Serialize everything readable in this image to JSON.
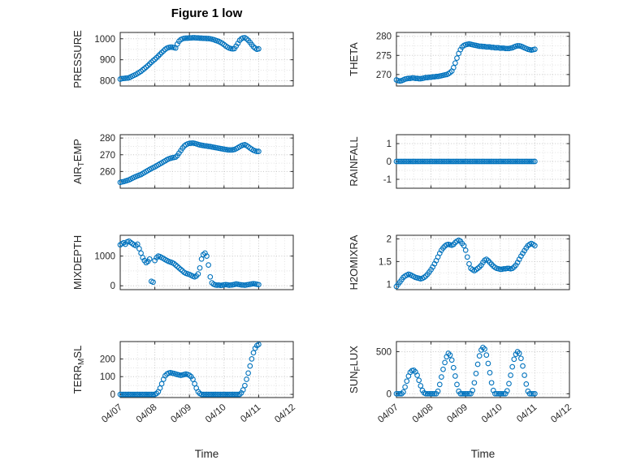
{
  "figure": {
    "title": "Figure 1 low",
    "marker_color": "#0072BD",
    "axis_color": "#262626",
    "grid_color": "#c6c6c6",
    "minor_grid_color": "#e2e2e2"
  },
  "x_axis": {
    "label": "Time",
    "lim": [
      7,
      12
    ],
    "ticks": [
      7,
      8,
      9,
      10,
      11,
      12
    ],
    "tick_labels": [
      "04/07",
      "04/08",
      "04/09",
      "04/10",
      "04/11",
      "04/12"
    ]
  },
  "chart_data": {
    "type": "scatter",
    "marker": "open-circle",
    "shared_x": [
      7,
      7.05,
      7.1,
      7.15,
      7.2,
      7.25,
      7.3,
      7.35,
      7.4,
      7.45,
      7.5,
      7.55,
      7.6,
      7.65,
      7.7,
      7.75,
      7.8,
      7.85,
      7.9,
      7.95,
      8,
      8.05,
      8.1,
      8.15,
      8.2,
      8.25,
      8.3,
      8.35,
      8.4,
      8.45,
      8.5,
      8.55,
      8.6,
      8.65,
      8.7,
      8.75,
      8.8,
      8.85,
      8.9,
      8.95,
      9,
      9.05,
      9.1,
      9.15,
      9.2,
      9.25,
      9.3,
      9.35,
      9.4,
      9.45,
      9.5,
      9.55,
      9.6,
      9.65,
      9.7,
      9.75,
      9.8,
      9.85,
      9.9,
      9.95,
      10,
      10.05,
      10.1,
      10.15,
      10.2,
      10.25,
      10.3,
      10.35,
      10.4,
      10.45,
      10.5,
      10.55,
      10.6,
      10.65,
      10.7,
      10.75,
      10.8,
      10.85,
      10.9,
      10.95,
      11
    ],
    "panels": [
      {
        "ylabel": "PRESSURE",
        "yticks": [
          800,
          900,
          1000
        ],
        "ylim": [
          775,
          1030
        ],
        "y": [
          808,
          810,
          811,
          812,
          813,
          814,
          818,
          822,
          826,
          830,
          835,
          840,
          845,
          852,
          858,
          865,
          872,
          880,
          888,
          896,
          902,
          910,
          918,
          926,
          934,
          942,
          950,
          955,
          958,
          960,
          960,
          958,
          956,
          975,
          988,
          996,
          1000,
          1002,
          1003,
          1003,
          1004,
          1004,
          1005,
          1005,
          1004,
          1004,
          1003,
          1003,
          1002,
          1002,
          1001,
          1001,
          1000,
          998,
          996,
          993,
          990,
          987,
          983,
          978,
          972,
          966,
          960,
          956,
          953,
          952,
          953,
          965,
          978,
          992,
          1000,
          1004,
          1005,
          1000,
          992,
          983,
          972,
          962,
          955,
          950,
          952
        ]
      },
      {
        "ylabel": "THETA",
        "yticks": [
          270,
          275,
          280
        ],
        "ylim": [
          267,
          281
        ],
        "y": [
          268.6,
          268.4,
          268.3,
          268.4,
          268.6,
          268.8,
          268.9,
          269,
          269,
          269.1,
          269.1,
          269,
          269,
          268.9,
          268.9,
          269,
          269.1,
          269.2,
          269.2,
          269.3,
          269.3,
          269.4,
          269.4,
          269.5,
          269.5,
          269.6,
          269.7,
          269.8,
          269.9,
          270,
          270.2,
          270.5,
          270.9,
          271.8,
          273,
          274.3,
          275.5,
          276.5,
          277.2,
          277.6,
          277.8,
          277.9,
          278,
          277.9,
          277.8,
          277.7,
          277.6,
          277.5,
          277.4,
          277.4,
          277.3,
          277.3,
          277.2,
          277.2,
          277.2,
          277.1,
          277.1,
          277,
          277,
          277,
          276.9,
          276.9,
          276.9,
          276.8,
          276.8,
          276.8,
          276.9,
          277,
          277.2,
          277.4,
          277.5,
          277.5,
          277.4,
          277.2,
          277,
          276.8,
          276.6,
          276.5,
          276.4,
          276.5,
          276.6
        ]
      },
      {
        "ylabel": "AIR_TEMP",
        "yticks": [
          260,
          270,
          280
        ],
        "ylim": [
          250,
          282
        ],
        "y": [
          253.5,
          253.8,
          254,
          254.3,
          254.6,
          255,
          255.5,
          256,
          256.5,
          257,
          257.4,
          257.8,
          258.2,
          258.8,
          259.4,
          260,
          260.6,
          261.2,
          261.8,
          262.3,
          262.8,
          263.4,
          264,
          264.6,
          265.2,
          265.8,
          266.4,
          267,
          267.5,
          267.9,
          268.2,
          268.4,
          268.6,
          269.5,
          271,
          272.5,
          274,
          275.2,
          276,
          276.5,
          276.8,
          276.9,
          277,
          276.8,
          276.5,
          276.2,
          275.9,
          275.7,
          275.5,
          275.3,
          275.2,
          275,
          274.9,
          274.7,
          274.5,
          274.3,
          274.1,
          273.9,
          273.7,
          273.5,
          273.3,
          273.2,
          273,
          272.9,
          272.9,
          273,
          273.2,
          273.6,
          274.2,
          274.8,
          275.4,
          275.8,
          276,
          275.5,
          274.8,
          274,
          273.3,
          272.7,
          272.3,
          272,
          272
        ]
      },
      {
        "ylabel": "RAINFALL",
        "yticks": [
          -1,
          0,
          1
        ],
        "ylim": [
          -1.5,
          1.5
        ],
        "y": [
          0,
          0,
          0,
          0,
          0,
          0,
          0,
          0,
          0,
          0,
          0,
          0,
          0,
          0,
          0,
          0,
          0,
          0,
          0,
          0,
          0,
          0,
          0,
          0,
          0,
          0,
          0,
          0,
          0,
          0,
          0,
          0,
          0,
          0,
          0,
          0,
          0,
          0,
          0,
          0,
          0,
          0,
          0,
          0,
          0,
          0,
          0,
          0,
          0,
          0,
          0,
          0,
          0,
          0,
          0,
          0,
          0,
          0,
          0,
          0,
          0,
          0,
          0,
          0,
          0,
          0,
          0,
          0,
          0,
          0,
          0,
          0,
          0,
          0,
          0,
          0,
          0,
          0,
          0,
          0,
          0
        ]
      },
      {
        "ylabel": "MIXDEPTH",
        "yticks": [
          0,
          1000
        ],
        "ylim": [
          -130,
          1700
        ],
        "y": [
          1380,
          1420,
          1450,
          1400,
          1480,
          1500,
          1460,
          1420,
          1380,
          1350,
          1400,
          1250,
          1100,
          950,
          850,
          780,
          820,
          900,
          150,
          120,
          850,
          950,
          1000,
          980,
          950,
          920,
          880,
          850,
          820,
          800,
          780,
          750,
          700,
          650,
          600,
          550,
          500,
          450,
          420,
          400,
          380,
          350,
          320,
          300,
          330,
          400,
          600,
          900,
          1050,
          1100,
          1000,
          700,
          300,
          100,
          50,
          30,
          20,
          25,
          15,
          20,
          30,
          40,
          30,
          20,
          25,
          35,
          45,
          60,
          50,
          40,
          30,
          25,
          20,
          30,
          40,
          50,
          60,
          70,
          60,
          50,
          40
        ]
      },
      {
        "ylabel": "H2OMIXRA",
        "yticks": [
          1,
          1.5,
          2
        ],
        "ylim": [
          0.88,
          2.08
        ],
        "y": [
          0.95,
          1,
          1.05,
          1.1,
          1.15,
          1.18,
          1.2,
          1.22,
          1.21,
          1.19,
          1.17,
          1.15,
          1.14,
          1.13,
          1.12,
          1.13,
          1.15,
          1.18,
          1.22,
          1.27,
          1.32,
          1.38,
          1.45,
          1.52,
          1.6,
          1.68,
          1.75,
          1.8,
          1.84,
          1.87,
          1.88,
          1.87,
          1.86,
          1.88,
          1.92,
          1.95,
          1.97,
          1.95,
          1.9,
          1.85,
          1.75,
          1.6,
          1.45,
          1.35,
          1.32,
          1.3,
          1.32,
          1.35,
          1.38,
          1.42,
          1.48,
          1.53,
          1.55,
          1.52,
          1.48,
          1.44,
          1.4,
          1.37,
          1.35,
          1.34,
          1.33,
          1.33,
          1.34,
          1.34,
          1.35,
          1.35,
          1.34,
          1.35,
          1.38,
          1.42,
          1.48,
          1.55,
          1.62,
          1.68,
          1.74,
          1.8,
          1.85,
          1.88,
          1.9,
          1.88,
          1.85
        ]
      },
      {
        "ylabel": "TERR_MSL",
        "yticks": [
          0,
          100,
          200
        ],
        "ylim": [
          -18,
          298
        ],
        "y": [
          0,
          0,
          0,
          0,
          0,
          0,
          0,
          0,
          0,
          0,
          0,
          0,
          0,
          0,
          0,
          0,
          0,
          0,
          0,
          0,
          0,
          5,
          15,
          35,
          60,
          85,
          105,
          115,
          120,
          122,
          120,
          118,
          115,
          112,
          110,
          108,
          110,
          112,
          115,
          112,
          108,
          100,
          85,
          60,
          35,
          15,
          5,
          0,
          0,
          0,
          0,
          0,
          0,
          0,
          0,
          0,
          0,
          0,
          0,
          0,
          0,
          0,
          0,
          0,
          0,
          0,
          0,
          0,
          0,
          0,
          8,
          25,
          50,
          85,
          120,
          160,
          200,
          235,
          260,
          275,
          282
        ]
      },
      {
        "ylabel": "SUN_FLUX",
        "yticks": [
          0,
          500
        ],
        "ylim": [
          -45,
          620
        ],
        "y": [
          0,
          0,
          0,
          0,
          20,
          80,
          150,
          210,
          255,
          275,
          280,
          260,
          220,
          160,
          95,
          40,
          10,
          0,
          0,
          0,
          0,
          0,
          0,
          0,
          30,
          110,
          200,
          290,
          370,
          440,
          480,
          460,
          400,
          310,
          210,
          110,
          30,
          0,
          0,
          0,
          0,
          0,
          0,
          0,
          40,
          130,
          240,
          350,
          450,
          520,
          550,
          530,
          460,
          360,
          250,
          130,
          40,
          0,
          0,
          0,
          0,
          0,
          0,
          0,
          35,
          120,
          220,
          320,
          410,
          470,
          500,
          480,
          420,
          330,
          220,
          115,
          30,
          0,
          0,
          0,
          0
        ]
      }
    ]
  }
}
